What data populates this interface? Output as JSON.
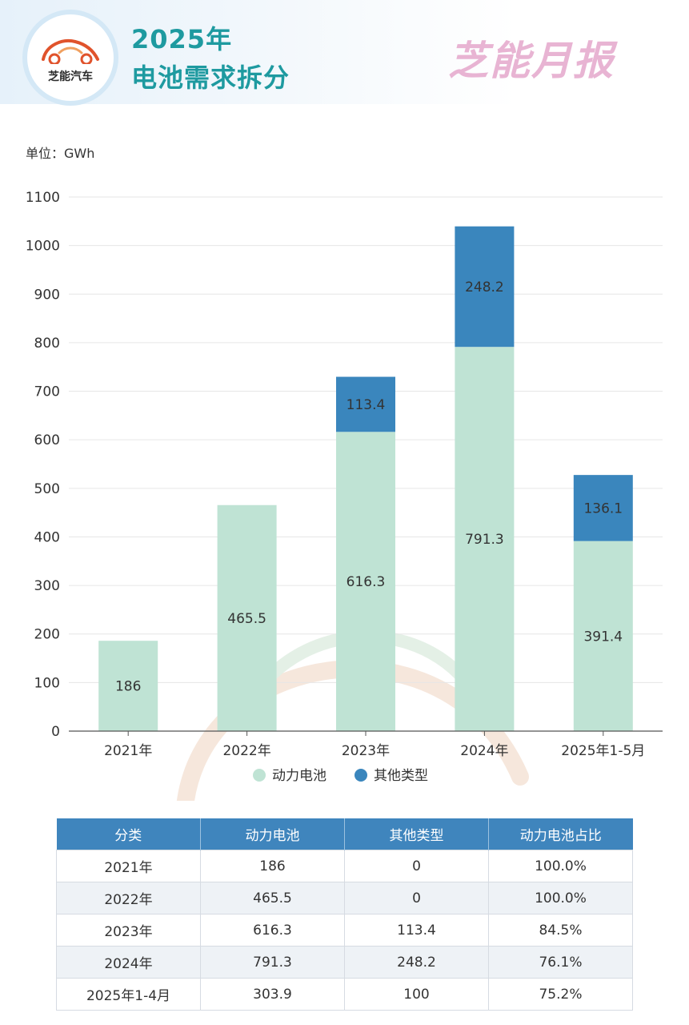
{
  "header": {
    "logo_text": "芝能汽车",
    "title_line1": "2025年",
    "title_line2": "电池需求拆分",
    "brand": "芝能月报"
  },
  "watermark": "芝能汽车",
  "colors": {
    "power_battery": "#bfe3d4",
    "other_types": "#3a86bd",
    "title": "#1e9aa0",
    "table_header": "#3f85bd"
  },
  "chart_data": {
    "type": "bar",
    "stacked": true,
    "unit_label": "单位：GWh",
    "categories": [
      "2021年",
      "2022年",
      "2023年",
      "2024年",
      "2025年1-5月"
    ],
    "series": [
      {
        "name": "动力电池",
        "values": [
          186,
          465.5,
          616.3,
          791.3,
          391.4
        ]
      },
      {
        "name": "其他类型",
        "values": [
          0,
          0,
          113.4,
          248.2,
          136.1
        ]
      }
    ],
    "data_labels": [
      [
        "186",
        "465.5",
        "616.3",
        "791.3",
        "391.4"
      ],
      [
        "",
        "",
        "113.4",
        "248.2",
        "136.1"
      ]
    ],
    "ylim": [
      0,
      1100
    ],
    "yticks": [
      0,
      100,
      200,
      300,
      400,
      500,
      600,
      700,
      800,
      900,
      1000,
      1100
    ],
    "grid": true,
    "legend_position": "bottom"
  },
  "table": {
    "headers": [
      "分类",
      "动力电池",
      "其他类型",
      "动力电池占比"
    ],
    "rows": [
      [
        "2021年",
        "186",
        "0",
        "100.0%"
      ],
      [
        "2022年",
        "465.5",
        "0",
        "100.0%"
      ],
      [
        "2023年",
        "616.3",
        "113.4",
        "84.5%"
      ],
      [
        "2024年",
        "791.3",
        "248.2",
        "76.1%"
      ],
      [
        "2025年1-4月",
        "303.9",
        "100",
        "75.2%"
      ]
    ]
  }
}
